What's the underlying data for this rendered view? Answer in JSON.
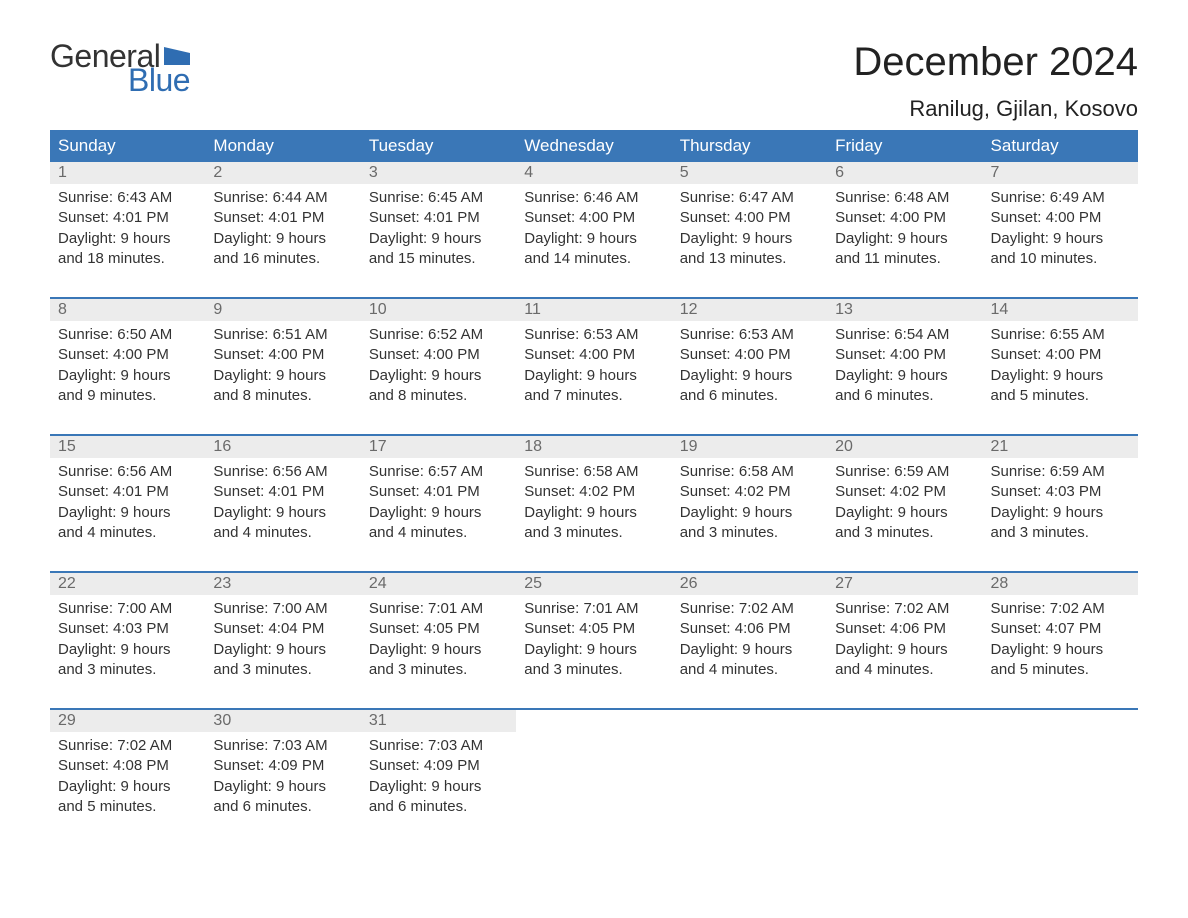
{
  "logo": {
    "text_general": "General",
    "text_blue": "Blue",
    "flag_color": "#2f6db2"
  },
  "title": "December 2024",
  "location": "Ranilug, Gjilan, Kosovo",
  "colors": {
    "header_bg": "#3a77b7",
    "header_text": "#ffffff",
    "daynum_bg": "#ececec",
    "daynum_text": "#6a6a6a",
    "body_text": "#333333",
    "rule": "#3a77b7",
    "logo_blue": "#2f6db2"
  },
  "day_headers": [
    "Sunday",
    "Monday",
    "Tuesday",
    "Wednesday",
    "Thursday",
    "Friday",
    "Saturday"
  ],
  "weeks": [
    [
      {
        "d": "1",
        "sr": "6:43 AM",
        "ss": "4:01 PM",
        "dl": "9 hours and 18 minutes."
      },
      {
        "d": "2",
        "sr": "6:44 AM",
        "ss": "4:01 PM",
        "dl": "9 hours and 16 minutes."
      },
      {
        "d": "3",
        "sr": "6:45 AM",
        "ss": "4:01 PM",
        "dl": "9 hours and 15 minutes."
      },
      {
        "d": "4",
        "sr": "6:46 AM",
        "ss": "4:00 PM",
        "dl": "9 hours and 14 minutes."
      },
      {
        "d": "5",
        "sr": "6:47 AM",
        "ss": "4:00 PM",
        "dl": "9 hours and 13 minutes."
      },
      {
        "d": "6",
        "sr": "6:48 AM",
        "ss": "4:00 PM",
        "dl": "9 hours and 11 minutes."
      },
      {
        "d": "7",
        "sr": "6:49 AM",
        "ss": "4:00 PM",
        "dl": "9 hours and 10 minutes."
      }
    ],
    [
      {
        "d": "8",
        "sr": "6:50 AM",
        "ss": "4:00 PM",
        "dl": "9 hours and 9 minutes."
      },
      {
        "d": "9",
        "sr": "6:51 AM",
        "ss": "4:00 PM",
        "dl": "9 hours and 8 minutes."
      },
      {
        "d": "10",
        "sr": "6:52 AM",
        "ss": "4:00 PM",
        "dl": "9 hours and 8 minutes."
      },
      {
        "d": "11",
        "sr": "6:53 AM",
        "ss": "4:00 PM",
        "dl": "9 hours and 7 minutes."
      },
      {
        "d": "12",
        "sr": "6:53 AM",
        "ss": "4:00 PM",
        "dl": "9 hours and 6 minutes."
      },
      {
        "d": "13",
        "sr": "6:54 AM",
        "ss": "4:00 PM",
        "dl": "9 hours and 6 minutes."
      },
      {
        "d": "14",
        "sr": "6:55 AM",
        "ss": "4:00 PM",
        "dl": "9 hours and 5 minutes."
      }
    ],
    [
      {
        "d": "15",
        "sr": "6:56 AM",
        "ss": "4:01 PM",
        "dl": "9 hours and 4 minutes."
      },
      {
        "d": "16",
        "sr": "6:56 AM",
        "ss": "4:01 PM",
        "dl": "9 hours and 4 minutes."
      },
      {
        "d": "17",
        "sr": "6:57 AM",
        "ss": "4:01 PM",
        "dl": "9 hours and 4 minutes."
      },
      {
        "d": "18",
        "sr": "6:58 AM",
        "ss": "4:02 PM",
        "dl": "9 hours and 3 minutes."
      },
      {
        "d": "19",
        "sr": "6:58 AM",
        "ss": "4:02 PM",
        "dl": "9 hours and 3 minutes."
      },
      {
        "d": "20",
        "sr": "6:59 AM",
        "ss": "4:02 PM",
        "dl": "9 hours and 3 minutes."
      },
      {
        "d": "21",
        "sr": "6:59 AM",
        "ss": "4:03 PM",
        "dl": "9 hours and 3 minutes."
      }
    ],
    [
      {
        "d": "22",
        "sr": "7:00 AM",
        "ss": "4:03 PM",
        "dl": "9 hours and 3 minutes."
      },
      {
        "d": "23",
        "sr": "7:00 AM",
        "ss": "4:04 PM",
        "dl": "9 hours and 3 minutes."
      },
      {
        "d": "24",
        "sr": "7:01 AM",
        "ss": "4:05 PM",
        "dl": "9 hours and 3 minutes."
      },
      {
        "d": "25",
        "sr": "7:01 AM",
        "ss": "4:05 PM",
        "dl": "9 hours and 3 minutes."
      },
      {
        "d": "26",
        "sr": "7:02 AM",
        "ss": "4:06 PM",
        "dl": "9 hours and 4 minutes."
      },
      {
        "d": "27",
        "sr": "7:02 AM",
        "ss": "4:06 PM",
        "dl": "9 hours and 4 minutes."
      },
      {
        "d": "28",
        "sr": "7:02 AM",
        "ss": "4:07 PM",
        "dl": "9 hours and 5 minutes."
      }
    ],
    [
      {
        "d": "29",
        "sr": "7:02 AM",
        "ss": "4:08 PM",
        "dl": "9 hours and 5 minutes."
      },
      {
        "d": "30",
        "sr": "7:03 AM",
        "ss": "4:09 PM",
        "dl": "9 hours and 6 minutes."
      },
      {
        "d": "31",
        "sr": "7:03 AM",
        "ss": "4:09 PM",
        "dl": "9 hours and 6 minutes."
      },
      null,
      null,
      null,
      null
    ]
  ],
  "labels": {
    "sunrise": "Sunrise:",
    "sunset": "Sunset:",
    "daylight": "Daylight:"
  }
}
